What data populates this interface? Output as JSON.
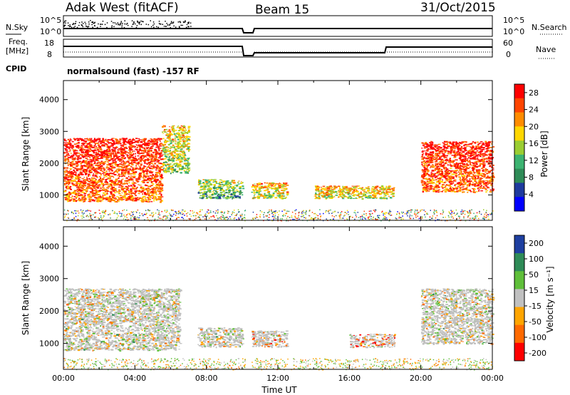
{
  "header": {
    "station": "Adak West (fitACF)",
    "beam": "Beam 15",
    "date": "31/Oct/2015"
  },
  "status_panel": {
    "nsky_label": "N.Sky",
    "nsearch_label": "N.Search",
    "freq_label_line1": "Freq.",
    "freq_label_line2": "[MHz]",
    "nave_label": "Nave",
    "cpid_label": "CPID",
    "mode_text": "normalsound (fast) -157 RF",
    "noise_ticks": [
      "10^5",
      "10^0"
    ],
    "freq_ticks": [
      "18",
      "8"
    ],
    "nave_ticks": [
      "60",
      "0"
    ]
  },
  "power_colorbar": {
    "label": "Power [dB]",
    "ticks": [
      "28",
      "24",
      "20",
      "16",
      "12",
      "8",
      "4"
    ],
    "colors": [
      "#ff0000",
      "#ff4500",
      "#ff8c00",
      "#ffd700",
      "#9acd32",
      "#3cb371",
      "#2e8b57",
      "#1e3a9e",
      "#0000ff"
    ]
  },
  "velocity_colorbar": {
    "label": "Velocity [m s⁻¹]",
    "ticks": [
      "200",
      "100",
      "50",
      "15",
      "-15",
      "-50",
      "-100",
      "-200"
    ],
    "colors": [
      "#1e3fa0",
      "#2e8b57",
      "#5fbf3a",
      "#c0c0c0",
      "#ffa500",
      "#ff6a00",
      "#ff0000"
    ]
  },
  "axes": {
    "ylabel": "Slant Range [km]",
    "xlabel": "Time UT",
    "yticks": [
      "4000",
      "3000",
      "2000",
      "1000"
    ],
    "xticks": [
      "00:00",
      "04:00",
      "08:00",
      "12:00",
      "16:00",
      "20:00",
      "00:00"
    ]
  },
  "chart_data": {
    "type": "heatmap",
    "title": "Adak West (fitACF)",
    "xlabel": "Time UT",
    "ylabel": "Slant Range [km]",
    "x_range_hours": [
      0,
      24
    ],
    "y_range_km": [
      200,
      4600
    ],
    "panels": [
      {
        "name": "Power [dB]",
        "colorbar_range": [
          0,
          30
        ],
        "echo_regions": [
          {
            "t_start": 0.0,
            "t_end": 5.5,
            "r_low": 800,
            "r_high": 2800,
            "value": 24
          },
          {
            "t_start": 5.5,
            "t_end": 7.0,
            "r_low": 1700,
            "r_high": 3200,
            "value": 14
          },
          {
            "t_start": 7.5,
            "t_end": 10.0,
            "r_low": 900,
            "r_high": 1500,
            "value": 10
          },
          {
            "t_start": 10.5,
            "t_end": 12.5,
            "r_low": 900,
            "r_high": 1400,
            "value": 16
          },
          {
            "t_start": 14.0,
            "t_end": 18.5,
            "r_low": 900,
            "r_high": 1300,
            "value": 16
          },
          {
            "t_start": 20.0,
            "t_end": 24.0,
            "r_low": 1100,
            "r_high": 2700,
            "value": 24
          }
        ],
        "data_gap_hours": [
          10.2,
          10.5
        ]
      },
      {
        "name": "Velocity [m s-1]",
        "colorbar_range": [
          -250,
          250
        ],
        "echo_regions": [
          {
            "t_start": 0.0,
            "t_end": 6.5,
            "r_low": 800,
            "r_high": 2700,
            "value": 0
          },
          {
            "t_start": 7.5,
            "t_end": 10.0,
            "r_low": 900,
            "r_high": 1500,
            "value": 0
          },
          {
            "t_start": 10.5,
            "t_end": 12.5,
            "r_low": 900,
            "r_high": 1400,
            "value": -40
          },
          {
            "t_start": 16.0,
            "t_end": 18.5,
            "r_low": 900,
            "r_high": 1300,
            "value": -50
          },
          {
            "t_start": 20.0,
            "t_end": 24.0,
            "r_low": 1000,
            "r_high": 2700,
            "value": 0
          }
        ],
        "data_gap_hours": [
          10.2,
          10.5
        ]
      }
    ]
  }
}
